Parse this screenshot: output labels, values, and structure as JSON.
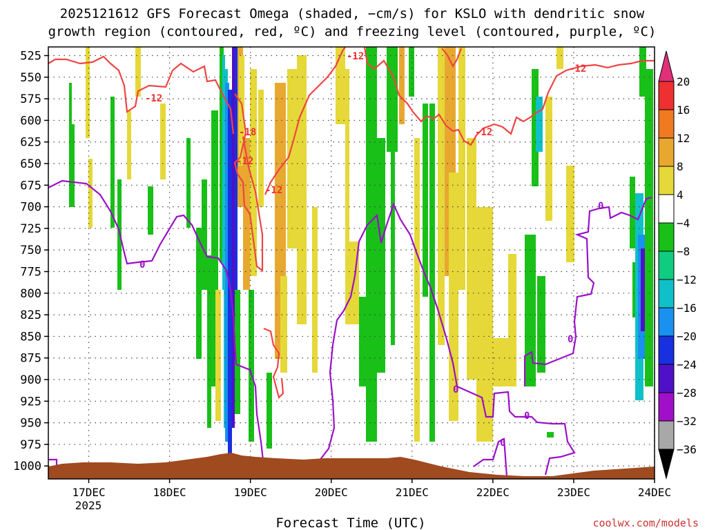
{
  "chart_data": {
    "type": "heatmap",
    "title_line1": "2025121612 GFS Forecast Omega (shaded, −cm/s) for KSLO with dendritic snow",
    "title_line2": "growth region (contoured, red, ºC) and freezing level (contoured, purple, ºC)",
    "xlabel": "Forecast Time (UTC)",
    "x_ticks": [
      "17DEC",
      "18DEC",
      "19DEC",
      "20DEC",
      "21DEC",
      "22DEC",
      "23DEC",
      "24DEC"
    ],
    "x_year": "2025",
    "x_range_days": [
      16.5,
      24.0
    ],
    "y_levels": [
      "525",
      "550",
      "575",
      "600",
      "625",
      "650",
      "675",
      "700",
      "725",
      "750",
      "775",
      "800",
      "825",
      "850",
      "875",
      "900",
      "925",
      "950",
      "975",
      "1000"
    ],
    "y_range_hpa": [
      515,
      1015
    ],
    "colorbar": {
      "labels": [
        "20",
        "16",
        "12",
        "8",
        "4",
        "−4",
        "−8",
        "−12",
        "−16",
        "−20",
        "−24",
        "−28",
        "−32",
        "−36"
      ],
      "colors": [
        "#e0307a",
        "#ee3030",
        "#f07a20",
        "#e8a830",
        "#e6d838",
        "#ffffff",
        "#18c018",
        "#10cc80",
        "#10c0c8",
        "#1a90f0",
        "#1830e0",
        "#5010c8",
        "#a010c8",
        "#a8a8a8",
        "#000000"
      ]
    },
    "contour_labels": {
      "dgz_red": [
        "-12",
        "-12",
        "-12",
        "-18",
        "-12",
        "-12",
        "-12"
      ],
      "freezing_purple": [
        "0",
        "0",
        "0",
        "0",
        "0",
        "0"
      ]
    },
    "colors": {
      "dgz": "#ee4444",
      "freezing": "#9a10c8",
      "terrain": "#a04a20"
    },
    "credit": "coolwx.com/models"
  }
}
